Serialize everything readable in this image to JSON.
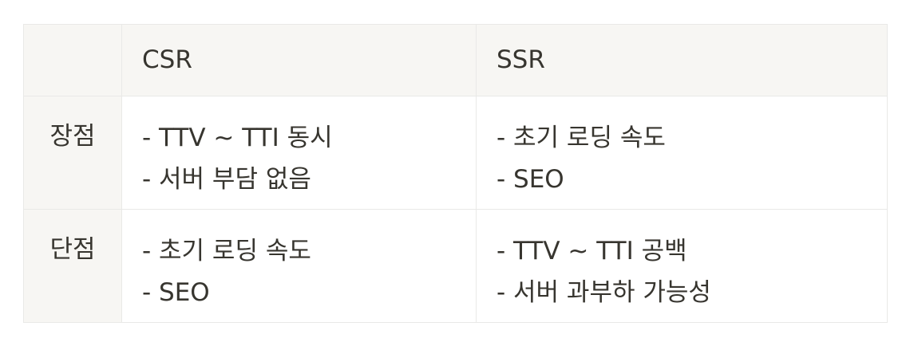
{
  "table": {
    "headers": [
      "",
      "CSR",
      "SSR"
    ],
    "rows": [
      {
        "label": "장점",
        "csr": [
          "- TTV ~ TTI 동시",
          "- 서버 부담 없음"
        ],
        "ssr": [
          "- 초기 로딩 속도",
          "- SEO"
        ]
      },
      {
        "label": "단점",
        "csr": [
          "- 초기 로딩 속도",
          "- SEO"
        ],
        "ssr": [
          "- TTV ~ TTI 공백",
          "- 서버 과부하 가능성"
        ]
      }
    ]
  }
}
